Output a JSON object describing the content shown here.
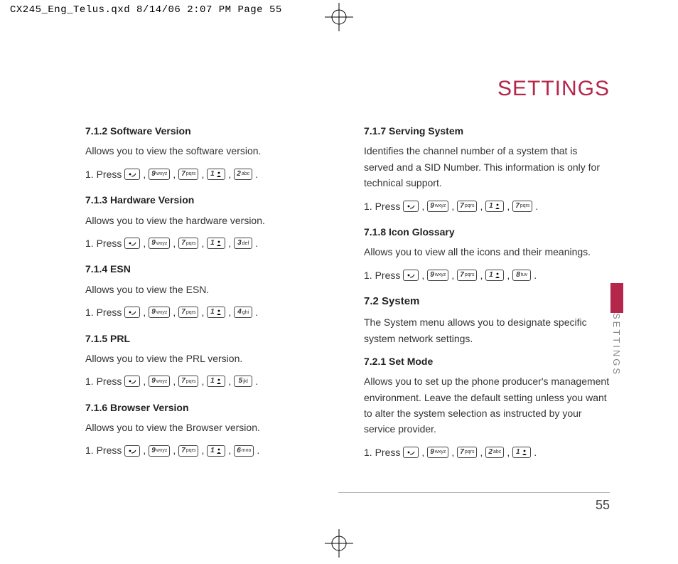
{
  "print_header": "CX245_Eng_Telus.qxd  8/14/06  2:07 PM  Page 55",
  "title": "SETTINGS",
  "side_label": "SETTINGS",
  "page_number": "55",
  "colors": {
    "accent": "#b5274a"
  },
  "keys": {
    "1": {
      "num": "1",
      "label": ""
    },
    "2": {
      "num": "2",
      "label": "abc"
    },
    "3": {
      "num": "3",
      "label": "def"
    },
    "4": {
      "num": "4",
      "label": "ghi"
    },
    "5": {
      "num": "5",
      "label": "jkl"
    },
    "6": {
      "num": "6",
      "label": "mno"
    },
    "7": {
      "num": "7",
      "label": "pqrs"
    },
    "8": {
      "num": "8",
      "label": "tuv"
    },
    "9": {
      "num": "9",
      "label": "wxyz"
    }
  },
  "left": {
    "s712": {
      "h": "7.1.2 Software Version",
      "p": "Allows you to view the software version.",
      "press": "1. Press",
      "seq": [
        "menu",
        "9",
        "7",
        "1",
        "2"
      ]
    },
    "s713": {
      "h": "7.1.3 Hardware Version",
      "p": "Allows you to view the hardware version.",
      "press": "1. Press",
      "seq": [
        "menu",
        "9",
        "7",
        "1",
        "3"
      ]
    },
    "s714": {
      "h": "7.1.4 ESN",
      "p": "Allows you to view the ESN.",
      "press": "1. Press",
      "seq": [
        "menu",
        "9",
        "7",
        "1",
        "4"
      ]
    },
    "s715": {
      "h": "7.1.5 PRL",
      "p": "Allows you to view the PRL version.",
      "press": "1. Press",
      "seq": [
        "menu",
        "9",
        "7",
        "1",
        "5"
      ]
    },
    "s716": {
      "h": "7.1.6 Browser Version",
      "p": "Allows you to view the Browser version.",
      "press": "1. Press",
      "seq": [
        "menu",
        "9",
        "7",
        "1",
        "6"
      ]
    }
  },
  "right": {
    "s717": {
      "h": "7.1.7 Serving System",
      "p": "Identifies the channel number of a system that is served and a SID Number. This information is only for technical support.",
      "press": "1. Press",
      "seq": [
        "menu",
        "9",
        "7",
        "1",
        "7"
      ]
    },
    "s718": {
      "h": "7.1.8 Icon Glossary",
      "p": "Allows you to view all the icons and their meanings.",
      "press": "1. Press",
      "seq": [
        "menu",
        "9",
        "7",
        "1",
        "8"
      ]
    },
    "s72": {
      "h": "7.2 System",
      "p": "The System menu allows you to designate specific system network settings."
    },
    "s721": {
      "h": "7.2.1 Set Mode",
      "p": "Allows you to set up the phone producer's management environment. Leave the default setting unless you want to alter the system selection as instructed by your service provider.",
      "press": "1. Press",
      "seq": [
        "menu",
        "9",
        "7",
        "2",
        "1"
      ]
    }
  }
}
